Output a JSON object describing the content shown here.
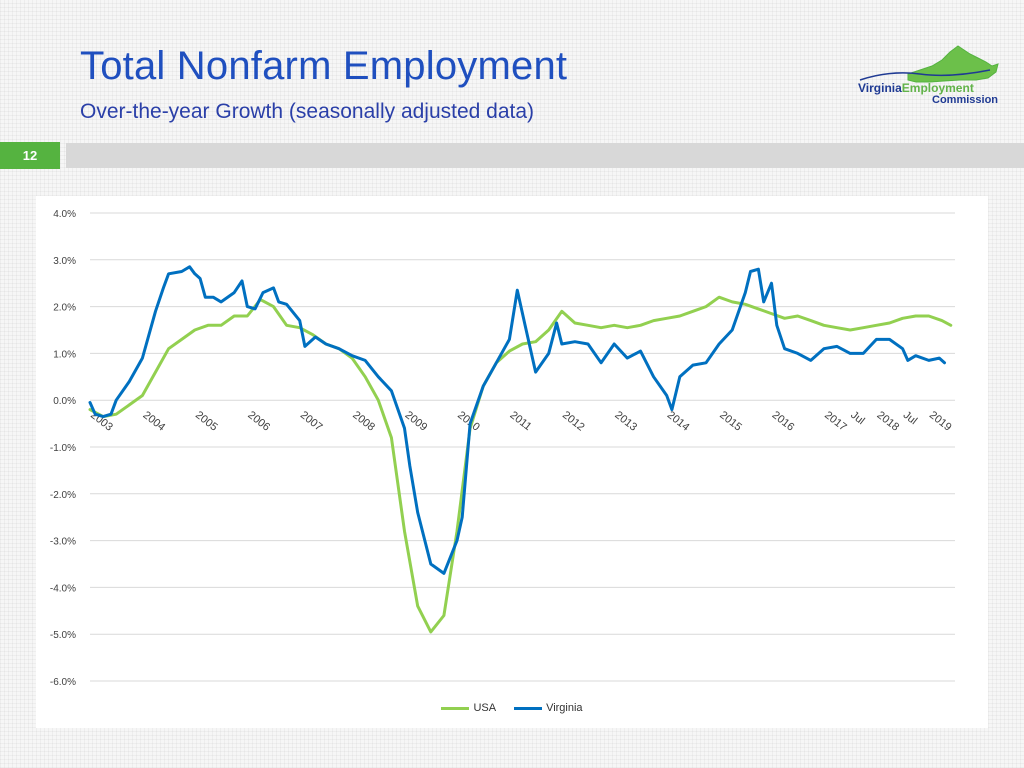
{
  "header": {
    "title": "Total Nonfarm Employment",
    "subtitle": "Over-the-year Growth  (seasonally adjusted data)"
  },
  "logo": {
    "word1": "Virginia",
    "word2": "Employment",
    "word3": "Commission"
  },
  "slide_number": "12",
  "colors": {
    "title": "#1f4fbf",
    "accent_green": "#55b340",
    "usa": "#92d050",
    "virginia": "#0070c0"
  },
  "chart_data": {
    "type": "line",
    "title": "",
    "xlabel": "",
    "ylabel": "",
    "ylim": [
      -6.0,
      4.0
    ],
    "y_ticks": [
      "4.0%",
      "3.0%",
      "2.0%",
      "1.0%",
      "0.0%",
      "-1.0%",
      "-2.0%",
      "-3.0%",
      "-4.0%",
      "-5.0%",
      "-6.0%"
    ],
    "grid": true,
    "legend": "bottom",
    "x_range": [
      2003.0,
      2019.5
    ],
    "x_tick_labels": [
      {
        "label": "2003",
        "x": 2003.0
      },
      {
        "label": "2004",
        "x": 2004.0
      },
      {
        "label": "2005",
        "x": 2005.0
      },
      {
        "label": "2006",
        "x": 2006.0
      },
      {
        "label": "2007",
        "x": 2007.0
      },
      {
        "label": "2008",
        "x": 2008.0
      },
      {
        "label": "2009",
        "x": 2009.0
      },
      {
        "label": "2010",
        "x": 2010.0
      },
      {
        "label": "2011",
        "x": 2011.0
      },
      {
        "label": "2012",
        "x": 2012.0
      },
      {
        "label": "2013",
        "x": 2013.0
      },
      {
        "label": "2014",
        "x": 2014.0
      },
      {
        "label": "2015",
        "x": 2015.0
      },
      {
        "label": "2016",
        "x": 2016.0
      },
      {
        "label": "2017",
        "x": 2017.0
      },
      {
        "label": "Jul",
        "x": 2017.5
      },
      {
        "label": "2018",
        "x": 2018.0
      },
      {
        "label": "Jul",
        "x": 2018.5
      },
      {
        "label": "2019",
        "x": 2019.0
      }
    ],
    "series": [
      {
        "name": "USA",
        "color": "#92d050",
        "points": [
          [
            2003.0,
            -0.2
          ],
          [
            2003.25,
            -0.35
          ],
          [
            2003.5,
            -0.3
          ],
          [
            2003.75,
            -0.1
          ],
          [
            2004.0,
            0.1
          ],
          [
            2004.25,
            0.6
          ],
          [
            2004.5,
            1.1
          ],
          [
            2004.75,
            1.3
          ],
          [
            2005.0,
            1.5
          ],
          [
            2005.25,
            1.6
          ],
          [
            2005.5,
            1.6
          ],
          [
            2005.75,
            1.8
          ],
          [
            2006.0,
            1.8
          ],
          [
            2006.25,
            2.15
          ],
          [
            2006.5,
            2.0
          ],
          [
            2006.75,
            1.6
          ],
          [
            2007.0,
            1.55
          ],
          [
            2007.25,
            1.4
          ],
          [
            2007.5,
            1.2
          ],
          [
            2007.75,
            1.1
          ],
          [
            2008.0,
            0.9
          ],
          [
            2008.25,
            0.5
          ],
          [
            2008.5,
            0.0
          ],
          [
            2008.75,
            -0.8
          ],
          [
            2009.0,
            -2.8
          ],
          [
            2009.25,
            -4.4
          ],
          [
            2009.5,
            -4.95
          ],
          [
            2009.75,
            -4.6
          ],
          [
            2010.0,
            -2.8
          ],
          [
            2010.25,
            -0.6
          ],
          [
            2010.5,
            0.3
          ],
          [
            2010.75,
            0.8
          ],
          [
            2011.0,
            1.05
          ],
          [
            2011.25,
            1.2
          ],
          [
            2011.5,
            1.25
          ],
          [
            2011.75,
            1.5
          ],
          [
            2012.0,
            1.9
          ],
          [
            2012.25,
            1.65
          ],
          [
            2012.5,
            1.6
          ],
          [
            2012.75,
            1.55
          ],
          [
            2013.0,
            1.6
          ],
          [
            2013.25,
            1.55
          ],
          [
            2013.5,
            1.6
          ],
          [
            2013.75,
            1.7
          ],
          [
            2014.0,
            1.75
          ],
          [
            2014.25,
            1.8
          ],
          [
            2014.5,
            1.9
          ],
          [
            2014.75,
            2.0
          ],
          [
            2015.0,
            2.2
          ],
          [
            2015.25,
            2.1
          ],
          [
            2015.5,
            2.05
          ],
          [
            2015.75,
            1.95
          ],
          [
            2016.0,
            1.85
          ],
          [
            2016.25,
            1.75
          ],
          [
            2016.5,
            1.8
          ],
          [
            2016.75,
            1.7
          ],
          [
            2017.0,
            1.6
          ],
          [
            2017.25,
            1.55
          ],
          [
            2017.5,
            1.5
          ],
          [
            2017.75,
            1.55
          ],
          [
            2018.0,
            1.6
          ],
          [
            2018.25,
            1.65
          ],
          [
            2018.5,
            1.75
          ],
          [
            2018.75,
            1.8
          ],
          [
            2019.0,
            1.8
          ],
          [
            2019.25,
            1.7
          ],
          [
            2019.42,
            1.6
          ]
        ]
      },
      {
        "name": "Virginia",
        "color": "#0070c0",
        "points": [
          [
            2003.0,
            -0.05
          ],
          [
            2003.1,
            -0.3
          ],
          [
            2003.25,
            -0.35
          ],
          [
            2003.4,
            -0.3
          ],
          [
            2003.5,
            0.0
          ],
          [
            2003.75,
            0.4
          ],
          [
            2004.0,
            0.9
          ],
          [
            2004.25,
            1.9
          ],
          [
            2004.4,
            2.4
          ],
          [
            2004.5,
            2.7
          ],
          [
            2004.75,
            2.75
          ],
          [
            2004.9,
            2.85
          ],
          [
            2005.0,
            2.7
          ],
          [
            2005.1,
            2.6
          ],
          [
            2005.2,
            2.2
          ],
          [
            2005.35,
            2.2
          ],
          [
            2005.5,
            2.1
          ],
          [
            2005.75,
            2.3
          ],
          [
            2005.9,
            2.55
          ],
          [
            2006.0,
            2.0
          ],
          [
            2006.15,
            1.95
          ],
          [
            2006.3,
            2.3
          ],
          [
            2006.5,
            2.4
          ],
          [
            2006.6,
            2.1
          ],
          [
            2006.75,
            2.05
          ],
          [
            2007.0,
            1.7
          ],
          [
            2007.1,
            1.15
          ],
          [
            2007.3,
            1.35
          ],
          [
            2007.5,
            1.2
          ],
          [
            2007.75,
            1.1
          ],
          [
            2008.0,
            0.95
          ],
          [
            2008.25,
            0.85
          ],
          [
            2008.5,
            0.5
          ],
          [
            2008.75,
            0.2
          ],
          [
            2009.0,
            -0.6
          ],
          [
            2009.1,
            -1.4
          ],
          [
            2009.25,
            -2.4
          ],
          [
            2009.5,
            -3.5
          ],
          [
            2009.75,
            -3.7
          ],
          [
            2010.0,
            -3.0
          ],
          [
            2010.1,
            -2.5
          ],
          [
            2010.25,
            -0.5
          ],
          [
            2010.5,
            0.3
          ],
          [
            2010.75,
            0.8
          ],
          [
            2011.0,
            1.3
          ],
          [
            2011.15,
            2.35
          ],
          [
            2011.3,
            1.6
          ],
          [
            2011.5,
            0.6
          ],
          [
            2011.75,
            1.0
          ],
          [
            2011.9,
            1.65
          ],
          [
            2012.0,
            1.2
          ],
          [
            2012.25,
            1.25
          ],
          [
            2012.5,
            1.2
          ],
          [
            2012.75,
            0.8
          ],
          [
            2013.0,
            1.2
          ],
          [
            2013.25,
            0.9
          ],
          [
            2013.5,
            1.05
          ],
          [
            2013.75,
            0.5
          ],
          [
            2014.0,
            0.1
          ],
          [
            2014.1,
            -0.2
          ],
          [
            2014.25,
            0.5
          ],
          [
            2014.5,
            0.75
          ],
          [
            2014.75,
            0.8
          ],
          [
            2015.0,
            1.2
          ],
          [
            2015.25,
            1.5
          ],
          [
            2015.5,
            2.3
          ],
          [
            2015.6,
            2.75
          ],
          [
            2015.75,
            2.8
          ],
          [
            2015.85,
            2.1
          ],
          [
            2016.0,
            2.5
          ],
          [
            2016.1,
            1.6
          ],
          [
            2016.25,
            1.1
          ],
          [
            2016.5,
            1.0
          ],
          [
            2016.75,
            0.85
          ],
          [
            2017.0,
            1.1
          ],
          [
            2017.25,
            1.15
          ],
          [
            2017.5,
            1.0
          ],
          [
            2017.75,
            1.0
          ],
          [
            2018.0,
            1.3
          ],
          [
            2018.25,
            1.3
          ],
          [
            2018.5,
            1.1
          ],
          [
            2018.6,
            0.85
          ],
          [
            2018.75,
            0.95
          ],
          [
            2019.0,
            0.85
          ],
          [
            2019.2,
            0.9
          ],
          [
            2019.3,
            0.8
          ]
        ]
      }
    ]
  }
}
